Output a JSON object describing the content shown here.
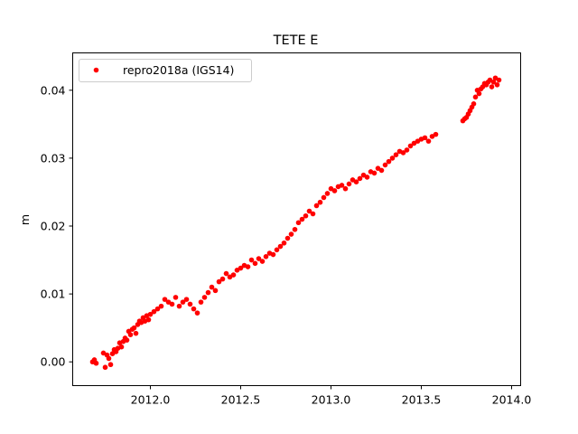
{
  "chart_data": {
    "type": "scatter",
    "title": "TETE E",
    "xlabel": "",
    "ylabel": "m",
    "xlim": [
      2011.57,
      2014.05
    ],
    "ylim": [
      -0.0035,
      0.0455
    ],
    "xticks": [
      2012.0,
      2012.5,
      2013.0,
      2013.5,
      2014.0
    ],
    "xtick_labels": [
      "2012.0",
      "2012.5",
      "2013.0",
      "2013.5",
      "2014.0"
    ],
    "yticks": [
      0.0,
      0.01,
      0.02,
      0.03,
      0.04
    ],
    "ytick_labels": [
      "0.00",
      "0.01",
      "0.02",
      "0.03",
      "0.04"
    ],
    "grid": false,
    "legend_position": "top-left",
    "series": [
      {
        "name": "repro2018a (IGS14)",
        "color": "#ff0000",
        "marker": "circle",
        "x": [
          2011.68,
          2011.69,
          2011.7,
          2011.74,
          2011.75,
          2011.76,
          2011.77,
          2011.78,
          2011.79,
          2011.8,
          2011.81,
          2011.82,
          2011.83,
          2011.84,
          2011.85,
          2011.86,
          2011.87,
          2011.88,
          2011.89,
          2011.9,
          2011.91,
          2011.92,
          2011.93,
          2011.94,
          2011.95,
          2011.96,
          2011.97,
          2011.98,
          2011.99,
          2012.0,
          2012.02,
          2012.04,
          2012.06,
          2012.08,
          2012.1,
          2012.12,
          2012.14,
          2012.16,
          2012.18,
          2012.2,
          2012.22,
          2012.24,
          2012.26,
          2012.28,
          2012.3,
          2012.32,
          2012.34,
          2012.36,
          2012.38,
          2012.4,
          2012.42,
          2012.44,
          2012.46,
          2012.48,
          2012.5,
          2012.52,
          2012.54,
          2012.56,
          2012.58,
          2012.6,
          2012.62,
          2012.64,
          2012.66,
          2012.68,
          2012.7,
          2012.72,
          2012.74,
          2012.76,
          2012.78,
          2012.8,
          2012.82,
          2012.84,
          2012.86,
          2012.88,
          2012.9,
          2012.92,
          2012.94,
          2012.96,
          2012.98,
          2013.0,
          2013.02,
          2013.04,
          2013.06,
          2013.08,
          2013.1,
          2013.12,
          2013.14,
          2013.16,
          2013.18,
          2013.2,
          2013.22,
          2013.24,
          2013.26,
          2013.28,
          2013.3,
          2013.32,
          2013.34,
          2013.36,
          2013.38,
          2013.4,
          2013.42,
          2013.44,
          2013.46,
          2013.48,
          2013.5,
          2013.52,
          2013.54,
          2013.56,
          2013.58,
          2013.73,
          2013.74,
          2013.75,
          2013.76,
          2013.77,
          2013.78,
          2013.79,
          2013.8,
          2013.81,
          2013.82,
          2013.83,
          2013.84,
          2013.85,
          2013.86,
          2013.87,
          2013.88,
          2013.89,
          2013.9,
          2013.91,
          2013.92,
          2013.93
        ],
        "y": [
          0.0,
          0.0003,
          -0.0002,
          0.0013,
          -0.0008,
          0.001,
          0.0005,
          -0.0004,
          0.0012,
          0.0018,
          0.0015,
          0.002,
          0.0028,
          0.0022,
          0.003,
          0.0035,
          0.0032,
          0.0045,
          0.004,
          0.0048,
          0.005,
          0.0042,
          0.0055,
          0.006,
          0.0058,
          0.0065,
          0.006,
          0.0068,
          0.0062,
          0.007,
          0.0074,
          0.0078,
          0.0082,
          0.0092,
          0.0088,
          0.0085,
          0.0095,
          0.0082,
          0.0088,
          0.0092,
          0.0085,
          0.0078,
          0.0072,
          0.0088,
          0.0095,
          0.0102,
          0.011,
          0.0105,
          0.0118,
          0.0122,
          0.013,
          0.0125,
          0.0128,
          0.0135,
          0.0138,
          0.0142,
          0.014,
          0.015,
          0.0145,
          0.0152,
          0.0148,
          0.0155,
          0.016,
          0.0158,
          0.0165,
          0.017,
          0.0175,
          0.0182,
          0.0188,
          0.0195,
          0.0205,
          0.021,
          0.0215,
          0.0222,
          0.0218,
          0.023,
          0.0235,
          0.0242,
          0.0248,
          0.0255,
          0.0252,
          0.0258,
          0.026,
          0.0255,
          0.0262,
          0.0268,
          0.0265,
          0.027,
          0.0275,
          0.0272,
          0.028,
          0.0278,
          0.0285,
          0.0282,
          0.029,
          0.0295,
          0.03,
          0.0305,
          0.031,
          0.0308,
          0.0312,
          0.0318,
          0.0322,
          0.0325,
          0.0328,
          0.033,
          0.0325,
          0.0332,
          0.0335,
          0.0355,
          0.0358,
          0.036,
          0.0365,
          0.037,
          0.0375,
          0.038,
          0.039,
          0.04,
          0.0395,
          0.0402,
          0.0405,
          0.041,
          0.0408,
          0.0412,
          0.0415,
          0.0405,
          0.0412,
          0.0418,
          0.0408,
          0.0415
        ]
      }
    ]
  }
}
